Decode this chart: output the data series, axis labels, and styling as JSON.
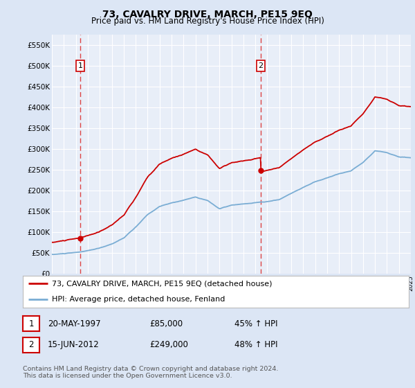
{
  "title": "73, CAVALRY DRIVE, MARCH, PE15 9EQ",
  "subtitle": "Price paid vs. HM Land Registry's House Price Index (HPI)",
  "ylim": [
    0,
    575000
  ],
  "yticks": [
    0,
    50000,
    100000,
    150000,
    200000,
    250000,
    300000,
    350000,
    400000,
    450000,
    500000,
    550000
  ],
  "ytick_labels": [
    "£0",
    "£50K",
    "£100K",
    "£150K",
    "£200K",
    "£250K",
    "£300K",
    "£350K",
    "£400K",
    "£450K",
    "£500K",
    "£550K"
  ],
  "bg_color": "#dce6f5",
  "plot_bg_color": "#e8eef8",
  "grid_color": "#ffffff",
  "sale1_date": 1997.38,
  "sale1_price": 85000,
  "sale2_date": 2012.45,
  "sale2_price": 249000,
  "red_line_color": "#cc0000",
  "blue_line_color": "#7aadd4",
  "marker_color": "#cc0000",
  "dashed_line_color": "#dd4444",
  "legend_label_red": "73, CAVALRY DRIVE, MARCH, PE15 9EQ (detached house)",
  "legend_label_blue": "HPI: Average price, detached house, Fenland",
  "annotation1_label": "1",
  "annotation2_label": "2",
  "footnote": "Contains HM Land Registry data © Crown copyright and database right 2024.\nThis data is licensed under the Open Government Licence v3.0.",
  "table_row1": [
    "1",
    "20-MAY-1997",
    "£85,000",
    "45% ↑ HPI"
  ],
  "table_row2": [
    "2",
    "15-JUN-2012",
    "£249,000",
    "48% ↑ HPI"
  ]
}
